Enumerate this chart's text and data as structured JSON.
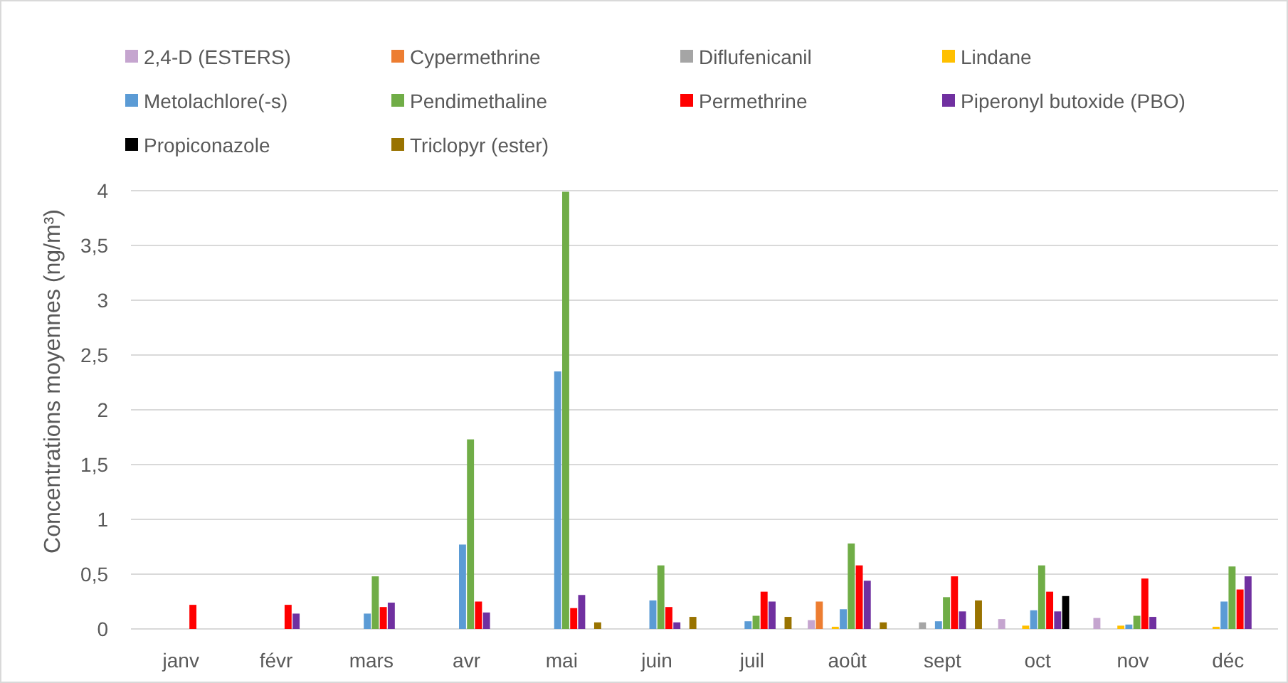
{
  "chart_data": {
    "type": "bar",
    "ylabel": "Concentrations moyennes (ng/m³)",
    "categories": [
      "janv",
      "févr",
      "mars",
      "avr",
      "mai",
      "juin",
      "juil",
      "août",
      "sept",
      "oct",
      "nov",
      "déc"
    ],
    "ylim": [
      0,
      4
    ],
    "yticks": [
      0,
      {
        "value": 0.5,
        "label": "0,5"
      },
      1,
      {
        "value": 1.5,
        "label": "1,5"
      },
      2,
      {
        "value": 2.5,
        "label": "2,5"
      },
      3,
      {
        "value": 3.5,
        "label": "3,5"
      },
      4
    ],
    "grid": "y",
    "legend": "top",
    "series": [
      {
        "name": "2,4-D (ESTERS)",
        "color": "#c5a5cf",
        "values": [
          null,
          null,
          null,
          null,
          null,
          null,
          null,
          0.08,
          null,
          0.09,
          0.1,
          null
        ]
      },
      {
        "name": "Cypermethrine",
        "color": "#ed7d31",
        "values": [
          null,
          null,
          null,
          null,
          null,
          null,
          null,
          0.25,
          null,
          null,
          null,
          null
        ]
      },
      {
        "name": "Diflufenicanil",
        "color": "#a5a5a5",
        "values": [
          null,
          null,
          null,
          null,
          null,
          null,
          null,
          null,
          0.06,
          null,
          null,
          null
        ]
      },
      {
        "name": "Lindane",
        "color": "#ffc000",
        "values": [
          null,
          null,
          null,
          null,
          null,
          null,
          null,
          0.02,
          null,
          0.03,
          0.03,
          0.02
        ]
      },
      {
        "name": "Metolachlore(-s)",
        "color": "#5b9bd5",
        "values": [
          null,
          null,
          0.14,
          0.77,
          2.35,
          0.26,
          0.07,
          0.18,
          0.07,
          0.17,
          0.04,
          0.25
        ]
      },
      {
        "name": "Pendimethaline",
        "color": "#70ad47",
        "values": [
          null,
          null,
          0.48,
          1.73,
          3.99,
          0.58,
          0.12,
          0.78,
          0.29,
          0.58,
          0.12,
          0.57
        ]
      },
      {
        "name": "Permethrine",
        "color": "#ff0000",
        "values": [
          0.22,
          0.22,
          0.2,
          0.25,
          0.19,
          0.2,
          0.34,
          0.58,
          0.48,
          0.34,
          0.46,
          0.36
        ]
      },
      {
        "name": "Piperonyl butoxide (PBO)",
        "color": "#7030a0",
        "values": [
          null,
          0.14,
          0.24,
          0.15,
          0.31,
          0.06,
          0.25,
          0.44,
          0.16,
          0.16,
          0.11,
          0.48
        ]
      },
      {
        "name": "Propiconazole",
        "color": "#000000",
        "values": [
          null,
          null,
          null,
          null,
          null,
          null,
          null,
          null,
          null,
          0.3,
          null,
          null
        ]
      },
      {
        "name": "Triclopyr (ester)",
        "color": "#997300",
        "values": [
          null,
          null,
          null,
          null,
          0.06,
          0.11,
          0.11,
          0.06,
          0.26,
          null,
          null,
          null
        ]
      }
    ]
  }
}
